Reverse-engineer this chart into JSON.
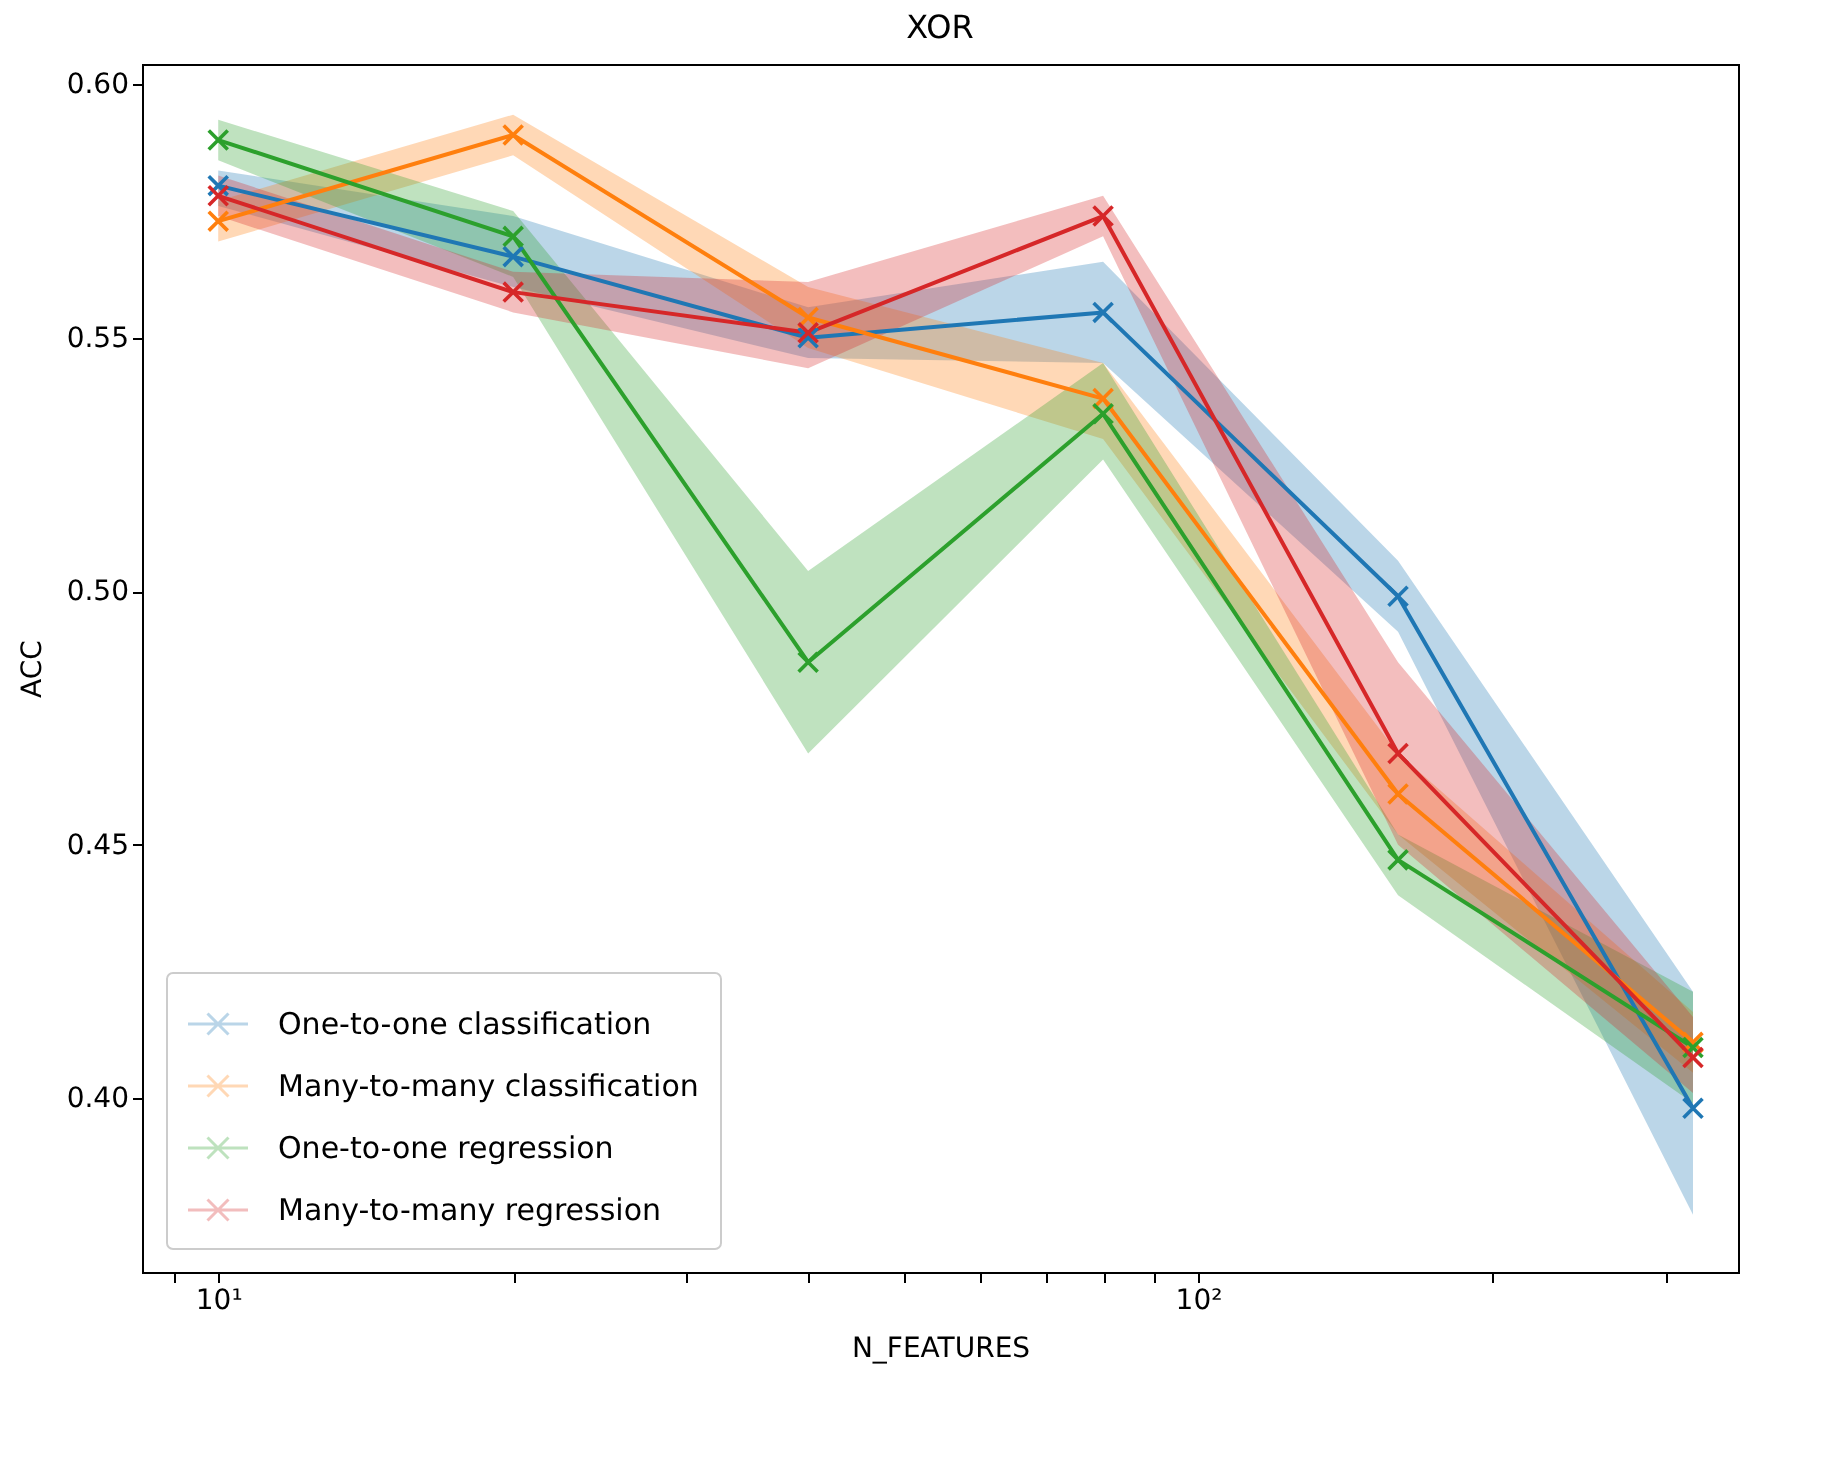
{
  "chart_data": {
    "type": "line",
    "title": "XOR",
    "xlabel": "N_FEATURES",
    "ylabel": "ACC",
    "x": [
      10,
      20,
      40,
      80,
      160,
      320
    ],
    "series": [
      {
        "name": "One-to-one classification",
        "color": "#1f77b4",
        "values": [
          0.58,
          0.566,
          0.55,
          0.555,
          0.499,
          0.398
        ],
        "lower": [
          0.576,
          0.56,
          0.546,
          0.545,
          0.492,
          0.377
        ],
        "upper": [
          0.583,
          0.574,
          0.556,
          0.565,
          0.506,
          0.421
        ]
      },
      {
        "name": "Many-to-many classification",
        "color": "#ff7f0e",
        "values": [
          0.573,
          0.59,
          0.554,
          0.538,
          0.46,
          0.411
        ],
        "lower": [
          0.569,
          0.586,
          0.548,
          0.53,
          0.452,
          0.405
        ],
        "upper": [
          0.577,
          0.594,
          0.56,
          0.545,
          0.468,
          0.417
        ]
      },
      {
        "name": "One-to-one regression",
        "color": "#2ca02c",
        "values": [
          0.589,
          0.57,
          0.486,
          0.535,
          0.447,
          0.41
        ],
        "lower": [
          0.585,
          0.562,
          0.468,
          0.526,
          0.44,
          0.399
        ],
        "upper": [
          0.593,
          0.575,
          0.504,
          0.545,
          0.452,
          0.421
        ]
      },
      {
        "name": "Many-to-many regression",
        "color": "#d62728",
        "values": [
          0.578,
          0.559,
          0.551,
          0.574,
          0.468,
          0.408
        ],
        "lower": [
          0.574,
          0.555,
          0.544,
          0.57,
          0.45,
          0.401
        ],
        "upper": [
          0.582,
          0.563,
          0.561,
          0.578,
          0.486,
          0.416
        ]
      }
    ],
    "log": "x",
    "xlim": [
      8.36,
      355.7
    ],
    "xticks": [
      {
        "value": 9,
        "label": null
      },
      {
        "value": 10,
        "label": "10¹"
      },
      {
        "value": 20,
        "label": null
      },
      {
        "value": 30,
        "label": null
      },
      {
        "value": 40,
        "label": null
      },
      {
        "value": 50,
        "label": null
      },
      {
        "value": 60,
        "label": null
      },
      {
        "value": 70,
        "label": null
      },
      {
        "value": 80,
        "label": null
      },
      {
        "value": 90,
        "label": null
      },
      {
        "value": 100,
        "label": "10²"
      },
      {
        "value": 200,
        "label": null
      },
      {
        "value": 300,
        "label": null
      }
    ],
    "ylim": [
      0.3657,
      0.604
    ],
    "yticks": [
      {
        "value": 0.4,
        "label": "0.40"
      },
      {
        "value": 0.45,
        "label": "0.45"
      },
      {
        "value": 0.5,
        "label": "0.50"
      },
      {
        "value": 0.55,
        "label": "0.55"
      },
      {
        "value": 0.6,
        "label": "0.60"
      }
    ],
    "legend": "bottom left",
    "marker": "cross",
    "line_style": "solid",
    "grid": false
  }
}
